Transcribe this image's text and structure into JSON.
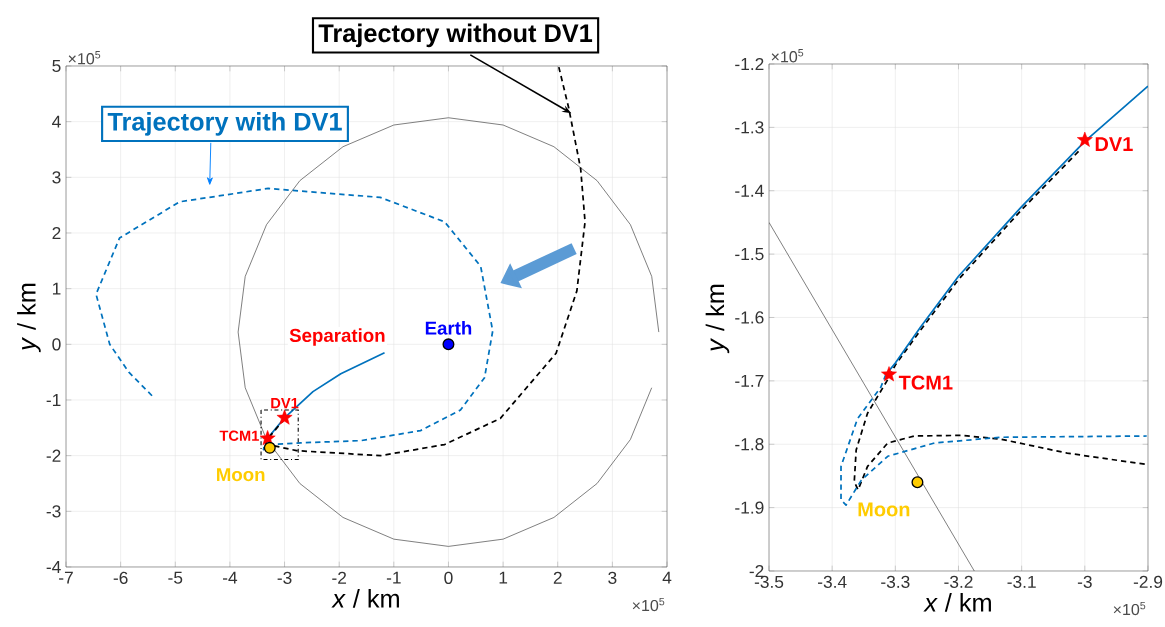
{
  "chart_data": [
    {
      "type": "line",
      "xlabel": "*x* / km",
      "ylabel": "*y* / km",
      "xlim": [
        -7,
        4
      ],
      "ylim": [
        -4,
        5
      ],
      "xticks": [
        -7,
        -6,
        -5,
        -4,
        -3,
        -2,
        -1,
        0,
        1,
        2,
        3,
        4
      ],
      "yticks": [
        -4,
        -3,
        -2,
        -1,
        0,
        1,
        2,
        3,
        4,
        5
      ],
      "grid": true,
      "annotations": [
        "×10$^{5}$",
        "×10$^{5}$",
        {
          "text": "Separation",
          "x": -1.17,
          "y": -0.15
        }
      ],
      "series": [
        {
          "color": "#404040",
          "line_style": "solid",
          "marker": "none",
          "x": [
            3.85,
            3.72,
            3.33,
            2.72,
            1.93,
            1.0,
            0,
            -1.0,
            -1.93,
            -2.72,
            -3.33,
            -3.72,
            -3.85,
            -3.72,
            -3.33,
            -2.72,
            -1.93,
            -1.0,
            0,
            1.0,
            1.93,
            2.72,
            3.33,
            3.72
          ],
          "values": [
            0.22,
            1.22,
            2.15,
            2.94,
            3.55,
            3.94,
            4.07,
            3.94,
            3.55,
            2.94,
            2.15,
            1.22,
            0.22,
            -0.78,
            -1.71,
            -2.5,
            -3.11,
            -3.5,
            -3.63,
            -3.5,
            -3.11,
            -2.5,
            -1.71,
            -0.78
          ]
        },
        {
          "color": "#0072bd",
          "line_style": "solid",
          "marker": "none",
          "x": [
            -1.17,
            -1.97,
            -2.48,
            -3.0,
            -3.31
          ],
          "values": [
            -0.15,
            -0.53,
            -0.85,
            -1.32,
            -1.69
          ]
        },
        {
          "name": "Trajectory with DV1",
          "color": "#0072bd",
          "line_style": "dashed",
          "marker": "none",
          "x": [
            -3.31,
            -3.36,
            -3.385,
            -3.35,
            -3.25,
            -2.7,
            -1.6,
            -0.51,
            0.22,
            0.66,
            0.81,
            0.59,
            -0.07,
            -1.25,
            -3.3,
            -4.92,
            -6.02,
            -6.45,
            -6.2,
            -5.85,
            -5.42
          ],
          "values": [
            -1.69,
            -1.76,
            -1.89,
            -1.86,
            -1.8,
            -1.77,
            -1.73,
            -1.55,
            -1.18,
            -0.6,
            0.24,
            1.4,
            2.2,
            2.64,
            2.8,
            2.56,
            1.91,
            0.9,
            0,
            -0.5,
            -0.93
          ]
        },
        {
          "name": "Trajectory without DV1",
          "color": "#000000",
          "line_style": "dashed",
          "marker": "none",
          "x": [
            -3.0,
            -3.31,
            -3.365,
            -3.3,
            -2.78,
            -1.24,
            -0.07,
            0.95,
            1.97,
            2.35,
            2.5,
            2.42,
            2.2,
            2.02
          ],
          "values": [
            -1.34,
            -1.7,
            -1.86,
            -1.8,
            -1.91,
            -2.0,
            -1.8,
            -1.33,
            -0.16,
            0.96,
            2.2,
            3.15,
            4.25,
            4.98
          ]
        },
        {
          "type": "scatter",
          "name": "Earth",
          "color": "#0000ff",
          "marker": "circle",
          "x": [
            0
          ],
          "values": [
            0
          ]
        },
        {
          "type": "scatter",
          "name": "DV1",
          "color": "#ff0000",
          "marker": "star",
          "x": [
            -3.0
          ],
          "values": [
            -1.32
          ]
        },
        {
          "type": "scatter",
          "name": "TCM1",
          "color": "#ff0000",
          "marker": "star",
          "x": [
            -3.31
          ],
          "values": [
            -1.69
          ]
        },
        {
          "type": "scatter",
          "name": "Moon",
          "color": "#ffcc00",
          "marker": "circle",
          "x": [
            -3.27
          ],
          "values": [
            -1.86
          ]
        }
      ]
    },
    {
      "type": "line",
      "xlabel": "*x* / km",
      "ylabel": "*y* / km",
      "xlim": [
        -3.5,
        -2.9
      ],
      "ylim": [
        -2,
        -1.2
      ],
      "xticks": [
        -3.5,
        -3.4,
        -3.3,
        -3.2,
        -3.1,
        -3,
        -2.9
      ],
      "yticks": [
        -2,
        -1.9,
        -1.8,
        -1.7,
        -1.6,
        -1.5,
        -1.4,
        -1.3,
        -1.2
      ],
      "grid": true,
      "annotations": [
        "×10$^{5}$",
        "×10$^{5}$"
      ],
      "series": [
        {
          "color": "#404040",
          "line_style": "solid",
          "marker": "none",
          "x": [
            -3.5,
            -3.175
          ],
          "values": [
            -1.45,
            -2.0
          ]
        },
        {
          "color": "#000000",
          "line_style": "dashed",
          "marker": "none",
          "x": [
            -3.01,
            -3.1,
            -3.2,
            -3.26,
            -3.3,
            -3.312,
            -3.344,
            -3.362,
            -3.365,
            -3.359,
            -3.344,
            -3.312,
            -3.27,
            -3.196,
            -3.133,
            -3.028,
            -2.902
          ],
          "values": [
            -1.338,
            -1.43,
            -1.54,
            -1.62,
            -1.675,
            -1.698,
            -1.751,
            -1.809,
            -1.859,
            -1.872,
            -1.835,
            -1.798,
            -1.787,
            -1.786,
            -1.792,
            -1.814,
            -1.832
          ]
        },
        {
          "color": "#0072bd",
          "line_style": "solid",
          "marker": "none",
          "x": [
            -2.9,
            -3.0,
            -3.1,
            -3.2,
            -3.26,
            -3.3,
            -3.315
          ],
          "values": [
            -1.235,
            -1.322,
            -1.425,
            -1.535,
            -1.615,
            -1.672,
            -1.69
          ]
        },
        {
          "color": "#0072bd",
          "line_style": "dashed",
          "marker": "none",
          "x": [
            -3.315,
            -3.323,
            -3.36,
            -3.386,
            -3.386,
            -3.378,
            -3.354,
            -3.312,
            -3.238,
            -3.133,
            -2.902
          ],
          "values": [
            -1.69,
            -1.71,
            -1.76,
            -1.835,
            -1.888,
            -1.896,
            -1.857,
            -1.819,
            -1.798,
            -1.789,
            -1.787
          ]
        },
        {
          "type": "scatter",
          "name": "DV1",
          "color": "#ff0000",
          "marker": "star",
          "x": [
            -3.0
          ],
          "values": [
            -1.32
          ]
        },
        {
          "type": "scatter",
          "name": "TCM1",
          "color": "#ff0000",
          "marker": "star",
          "x": [
            -3.31
          ],
          "values": [
            -1.69
          ]
        },
        {
          "type": "scatter",
          "name": "Moon",
          "color": "#ffcc00",
          "marker": "circle",
          "x": [
            -3.265
          ],
          "values": [
            -1.86
          ]
        }
      ]
    }
  ]
}
